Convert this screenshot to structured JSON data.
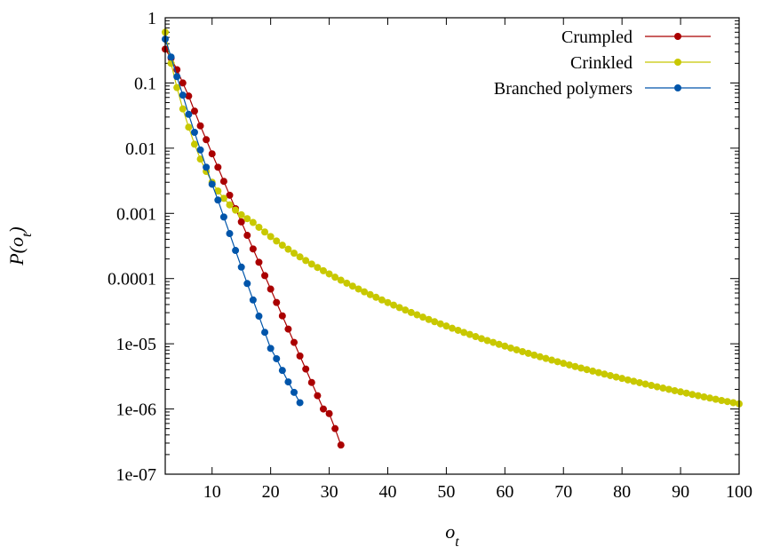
{
  "chart_data": {
    "type": "scatter",
    "xlabel": "o_t",
    "ylabel": "P(o_t)",
    "xlim": [
      2,
      100
    ],
    "ylim": [
      1e-07,
      1
    ],
    "yscale": "log",
    "grid": false,
    "legend_position": "top-right",
    "x_ticks": [
      10,
      20,
      30,
      40,
      50,
      60,
      70,
      80,
      90,
      100
    ],
    "y_ticks": [
      1e-07,
      1e-06,
      1e-05,
      0.0001,
      0.001,
      0.01,
      0.1,
      1
    ],
    "x_tick_labels": [
      "10",
      "20",
      "30",
      "40",
      "50",
      "60",
      "70",
      "80",
      "90",
      "100"
    ],
    "y_tick_labels": [
      "1e-07",
      "1e-06",
      "1e-05",
      "0.0001",
      "0.001",
      "0.01",
      "0.1",
      "1"
    ],
    "series": [
      {
        "name": "Crumpled",
        "color": "#aa0000",
        "x": [
          2,
          3,
          4,
          5,
          6,
          7,
          8,
          9,
          10,
          11,
          12,
          13,
          14,
          15,
          16,
          17,
          18,
          19,
          20,
          21,
          22,
          23,
          24,
          25,
          26,
          27,
          28,
          29,
          30,
          31,
          32
        ],
        "y": [
          0.33,
          0.24,
          0.16,
          0.1,
          0.063,
          0.037,
          0.022,
          0.0135,
          0.0082,
          0.0051,
          0.0031,
          0.0019,
          0.00118,
          0.00074,
          0.00046,
          0.000285,
          0.000178,
          0.000111,
          6.9e-05,
          4.3e-05,
          2.68e-05,
          1.68e-05,
          1.05e-05,
          6.5e-06,
          4.1e-06,
          2.55e-06,
          1.6e-06,
          1e-06,
          8.5e-07,
          5e-07,
          2.8e-07
        ]
      },
      {
        "name": "Crinkled",
        "color": "#c8c800",
        "x": [
          2,
          3,
          4,
          5,
          6,
          7,
          8,
          9,
          10,
          11,
          12,
          13,
          14,
          15,
          16,
          17,
          18,
          19,
          20,
          21,
          22,
          23,
          24,
          25,
          26,
          27,
          28,
          29,
          30,
          31,
          32,
          33,
          34,
          35,
          36,
          37,
          38,
          39,
          40,
          41,
          42,
          43,
          44,
          45,
          46,
          47,
          48,
          49,
          50,
          51,
          52,
          53,
          54,
          55,
          56,
          57,
          58,
          59,
          60,
          61,
          62,
          63,
          64,
          65,
          66,
          67,
          68,
          69,
          70,
          71,
          72,
          73,
          74,
          75,
          76,
          77,
          78,
          79,
          80,
          81,
          82,
          83,
          84,
          85,
          86,
          87,
          88,
          89,
          90,
          91,
          92,
          93,
          94,
          95,
          96,
          97,
          98,
          99,
          100
        ],
        "y": [
          0.6,
          0.2,
          0.085,
          0.04,
          0.021,
          0.0115,
          0.0068,
          0.0044,
          0.003,
          0.0022,
          0.0017,
          0.00135,
          0.00112,
          0.00095,
          0.00083,
          0.000725,
          0.000612,
          0.000518,
          0.000441,
          0.000377,
          0.000325,
          0.000282,
          0.000245,
          0.000215,
          0.000189,
          0.000167,
          0.000148,
          0.000132,
          0.000118,
          0.000105,
          9.45e-05,
          8.5e-05,
          7.66e-05,
          6.92e-05,
          6.26e-05,
          5.68e-05,
          5.16e-05,
          4.7e-05,
          4.29e-05,
          3.92e-05,
          3.59e-05,
          3.29e-05,
          3.02e-05,
          2.78e-05,
          2.56e-05,
          2.36e-05,
          2.18e-05,
          2.02e-05,
          1.87e-05,
          1.73e-05,
          1.61e-05,
          1.49e-05,
          1.39e-05,
          1.29e-05,
          1.2e-05,
          1.12e-05,
          1.05e-05,
          9.8e-06,
          9.2e-06,
          8.6e-06,
          8.08e-06,
          7.59e-06,
          7.13e-06,
          6.71e-06,
          6.32e-06,
          5.96e-06,
          5.62e-06,
          5.31e-06,
          5.01e-06,
          4.74e-06,
          4.48e-06,
          4.24e-06,
          4.02e-06,
          3.81e-06,
          3.61e-06,
          3.43e-06,
          3.25e-06,
          3.09e-06,
          2.94e-06,
          2.79e-06,
          2.66e-06,
          2.53e-06,
          2.41e-06,
          2.3e-06,
          2.19e-06,
          2.09e-06,
          2e-06,
          1.91e-06,
          1.83e-06,
          1.75e-06,
          1.67e-06,
          1.6e-06,
          1.53e-06,
          1.47e-06,
          1.41e-06,
          1.35e-06,
          1.3e-06,
          1.25e-06,
          1.2e-06
        ]
      },
      {
        "name": "Branched polymers",
        "color": "#0055aa",
        "x": [
          2,
          3,
          4,
          5,
          6,
          7,
          8,
          9,
          10,
          11,
          12,
          13,
          14,
          15,
          16,
          17,
          18,
          19,
          20,
          21,
          22,
          23,
          24,
          25
        ],
        "y": [
          0.47,
          0.25,
          0.125,
          0.065,
          0.033,
          0.0175,
          0.0094,
          0.0051,
          0.0028,
          0.0016,
          0.00088,
          0.00049,
          0.00027,
          0.00015,
          8.4e-05,
          4.7e-05,
          2.65e-05,
          1.5e-05,
          8.5e-06,
          5.9e-06,
          3.9e-06,
          2.6e-06,
          1.8e-06,
          1.25e-06
        ]
      }
    ]
  }
}
